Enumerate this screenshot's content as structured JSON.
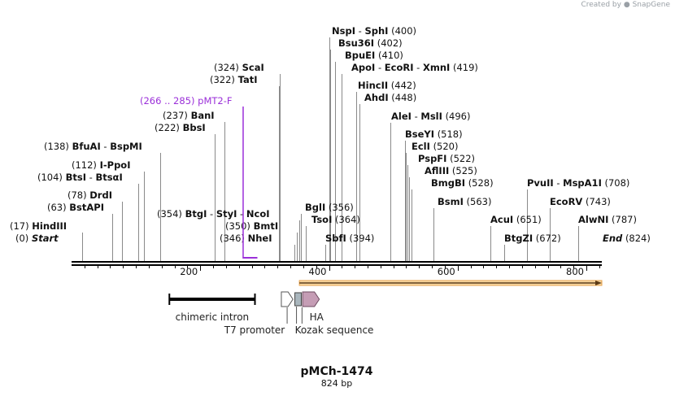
{
  "watermark": {
    "created_by": "Created by",
    "brand": "SnapGene"
  },
  "map": {
    "name": "pMCh-1474",
    "length": "824 bp",
    "min": 0,
    "max": 824
  },
  "axis": {
    "ticks": [
      200,
      400,
      600,
      800
    ]
  },
  "sites": [
    {
      "enzymes": [
        "Start"
      ],
      "pos": 0,
      "italic": true,
      "pos_first": true
    },
    {
      "enzymes": [
        "HindIII"
      ],
      "pos": 17,
      "pos_first": true
    },
    {
      "enzymes": [
        "BstAPI"
      ],
      "pos": 63,
      "pos_first": true
    },
    {
      "enzymes": [
        "DrdI"
      ],
      "pos": 78,
      "pos_first": true
    },
    {
      "enzymes": [
        "BtsI",
        "BtsαI"
      ],
      "pos": 104,
      "pos_first": true
    },
    {
      "enzymes": [
        "I-PpoI"
      ],
      "pos": 112,
      "pos_first": true
    },
    {
      "enzymes": [
        "BfuAI",
        "BspMI"
      ],
      "pos": 138,
      "pos_first": true
    },
    {
      "enzymes": [
        "BbsI"
      ],
      "pos": 222,
      "pos_first": true
    },
    {
      "enzymes": [
        "BanI"
      ],
      "pos": 237,
      "pos_first": true
    },
    {
      "enzymes": [
        "TatI"
      ],
      "pos": 322,
      "pos_first": true
    },
    {
      "enzymes": [
        "ScaI"
      ],
      "pos": 324,
      "pos_first": true
    },
    {
      "enzymes": [
        "BtgI",
        "StyI",
        "NcoI"
      ],
      "pos": 354,
      "pos_first": true
    },
    {
      "enzymes": [
        "NheI"
      ],
      "pos": 346,
      "pos_first": true
    },
    {
      "enzymes": [
        "BmtI"
      ],
      "pos": 350,
      "pos_first": true
    },
    {
      "enzymes": [
        "BglI"
      ],
      "pos": 356,
      "pos_first": false
    },
    {
      "enzymes": [
        "TsoI"
      ],
      "pos": 364,
      "pos_first": false
    },
    {
      "enzymes": [
        "SbfI"
      ],
      "pos": 394,
      "pos_first": false
    },
    {
      "enzymes": [
        "NspI",
        "SphI"
      ],
      "pos": 400,
      "pos_first": false
    },
    {
      "enzymes": [
        "Bsu36I"
      ],
      "pos": 402,
      "pos_first": false
    },
    {
      "enzymes": [
        "BpuEI"
      ],
      "pos": 410,
      "pos_first": false
    },
    {
      "enzymes": [
        "ApoI",
        "EcoRI",
        "XmnI"
      ],
      "pos": 419,
      "pos_first": false
    },
    {
      "enzymes": [
        "HincII"
      ],
      "pos": 442,
      "pos_first": false
    },
    {
      "enzymes": [
        "AhdI"
      ],
      "pos": 448,
      "pos_first": false
    },
    {
      "enzymes": [
        "AleI",
        "MslI"
      ],
      "pos": 496,
      "pos_first": false
    },
    {
      "enzymes": [
        "BseYI"
      ],
      "pos": 518,
      "pos_first": false
    },
    {
      "enzymes": [
        "EclI"
      ],
      "pos": 520,
      "pos_first": false
    },
    {
      "enzymes": [
        "PspFI"
      ],
      "pos": 522,
      "pos_first": false
    },
    {
      "enzymes": [
        "AflIII"
      ],
      "pos": 525,
      "pos_first": false
    },
    {
      "enzymes": [
        "BmgBI"
      ],
      "pos": 528,
      "pos_first": false
    },
    {
      "enzymes": [
        "BsmI"
      ],
      "pos": 563,
      "pos_first": false
    },
    {
      "enzymes": [
        "AcuI"
      ],
      "pos": 651,
      "pos_first": false
    },
    {
      "enzymes": [
        "BtgZI"
      ],
      "pos": 672,
      "pos_first": false
    },
    {
      "enzymes": [
        "PvuII",
        "MspA1I"
      ],
      "pos": 708,
      "pos_first": false
    },
    {
      "enzymes": [
        "EcoRV"
      ],
      "pos": 743,
      "pos_first": false
    },
    {
      "enzymes": [
        "AlwNI"
      ],
      "pos": 787,
      "pos_first": false
    },
    {
      "enzymes": [
        "End"
      ],
      "pos": 824,
      "italic": true,
      "pos_first": false
    }
  ],
  "primer": {
    "name": "pMT2-F",
    "range": "266 .. 285",
    "start": 266,
    "end": 285,
    "color": "#9b30d9"
  },
  "features": [
    {
      "name": "chimeric intron",
      "kind": "bar",
      "start": 152,
      "end": 285,
      "color": "#000000"
    },
    {
      "name": "T7 promoter",
      "kind": "arrow",
      "start": 326,
      "end": 344,
      "color": "#ffffff"
    },
    {
      "name": "Kozak sequence",
      "kind": "box",
      "start": 347,
      "end": 357,
      "color": "#a9b6bd"
    },
    {
      "name": "HA",
      "kind": "arrow",
      "start": 359,
      "end": 385,
      "color": "#c59db5"
    },
    {
      "name": "",
      "kind": "orf",
      "start": 354,
      "end": 824,
      "color": "#e8a24a"
    }
  ]
}
